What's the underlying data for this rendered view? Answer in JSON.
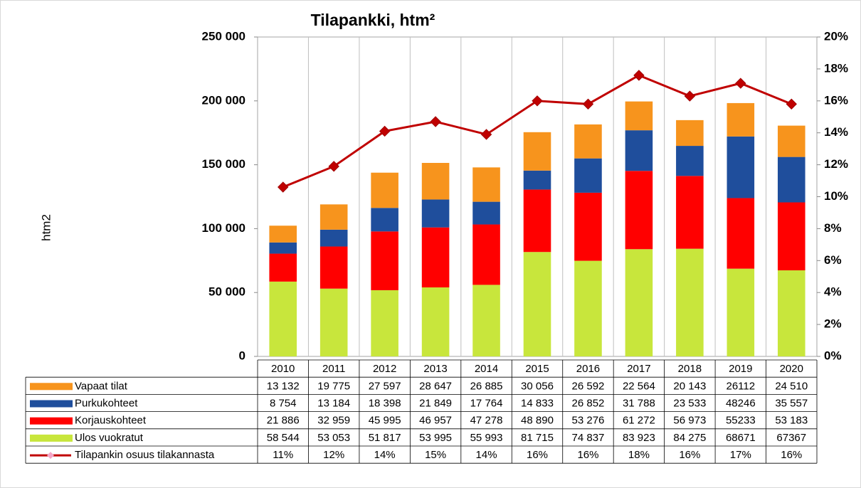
{
  "chart_data": {
    "type": "bar",
    "title": "Tilapankki, htm²",
    "ylabel": "htm2",
    "categories": [
      "2010",
      "2011",
      "2012",
      "2013",
      "2014",
      "2015",
      "2016",
      "2017",
      "2018",
      "2019",
      "2020"
    ],
    "series": [
      {
        "name": "Vapaat tilat",
        "color": "#f7941d",
        "values": [
          13132,
          19775,
          27597,
          28647,
          26885,
          30056,
          26592,
          22564,
          20143,
          26112,
          24510
        ],
        "value_labels": [
          "13 132",
          "19 775",
          "27 597",
          "28 647",
          "26 885",
          "30 056",
          "26 592",
          "22 564",
          "20 143",
          "26112",
          "24 510"
        ]
      },
      {
        "name": "Purkukohteet",
        "color": "#1f4e9c",
        "values": [
          8754,
          13184,
          18398,
          21849,
          17764,
          14833,
          26852,
          31788,
          23533,
          48246,
          35557
        ],
        "value_labels": [
          "8 754",
          "13 184",
          "18 398",
          "21 849",
          "17 764",
          "14 833",
          "26 852",
          "31 788",
          "23 533",
          "48246",
          "35 557"
        ]
      },
      {
        "name": "Korjauskohteet",
        "color": "#ff0000",
        "values": [
          21886,
          32959,
          45995,
          46957,
          47278,
          48890,
          53276,
          61272,
          56973,
          55233,
          53183
        ],
        "value_labels": [
          "21 886",
          "32 959",
          "45 995",
          "46 957",
          "47 278",
          "48 890",
          "53 276",
          "61 272",
          "56 973",
          "55233",
          "53 183"
        ]
      },
      {
        "name": "Ulos vuokratut",
        "color": "#c8e63c",
        "values": [
          58544,
          53053,
          51817,
          53995,
          55993,
          81715,
          74837,
          83923,
          84275,
          68671,
          67367
        ],
        "value_labels": [
          "58 544",
          "53 053",
          "51 817",
          "53 995",
          "55 993",
          "81 715",
          "74 837",
          "83 923",
          "84 275",
          "68671",
          "67367"
        ]
      },
      {
        "name": "Tilapankin osuus tilakannasta",
        "color": "#c00000",
        "type": "line",
        "axis": "y2",
        "values": [
          10.6,
          11.9,
          14.1,
          14.7,
          13.9,
          16.0,
          15.8,
          17.6,
          16.3,
          17.1,
          15.8
        ],
        "value_labels": [
          "11%",
          "12%",
          "14%",
          "15%",
          "14%",
          "16%",
          "16%",
          "18%",
          "16%",
          "17%",
          "16%"
        ]
      }
    ],
    "stacked": true,
    "ylim": [
      0,
      250000
    ],
    "yticks": [
      0,
      {
        "value": 50000,
        "label": "50 000"
      },
      {
        "value": 100000,
        "label": "100 000"
      },
      {
        "value": 150000,
        "label": "150 000"
      },
      {
        "value": 200000,
        "label": "200 000"
      },
      {
        "value": 250000,
        "label": "250 000"
      }
    ],
    "y2lim": [
      0,
      20
    ],
    "y2ticks": [
      {
        "value": 0,
        "label": "0%"
      },
      {
        "value": 2,
        "label": "2%"
      },
      {
        "value": 4,
        "label": "4%"
      },
      {
        "value": 6,
        "label": "6%"
      },
      {
        "value": 8,
        "label": "8%"
      },
      {
        "value": 10,
        "label": "10%"
      },
      {
        "value": 12,
        "label": "12%"
      },
      {
        "value": 14,
        "label": "14%"
      },
      {
        "value": 16,
        "label": "16%"
      },
      {
        "value": 18,
        "label": "18%"
      },
      {
        "value": 20,
        "label": "20%"
      }
    ]
  }
}
